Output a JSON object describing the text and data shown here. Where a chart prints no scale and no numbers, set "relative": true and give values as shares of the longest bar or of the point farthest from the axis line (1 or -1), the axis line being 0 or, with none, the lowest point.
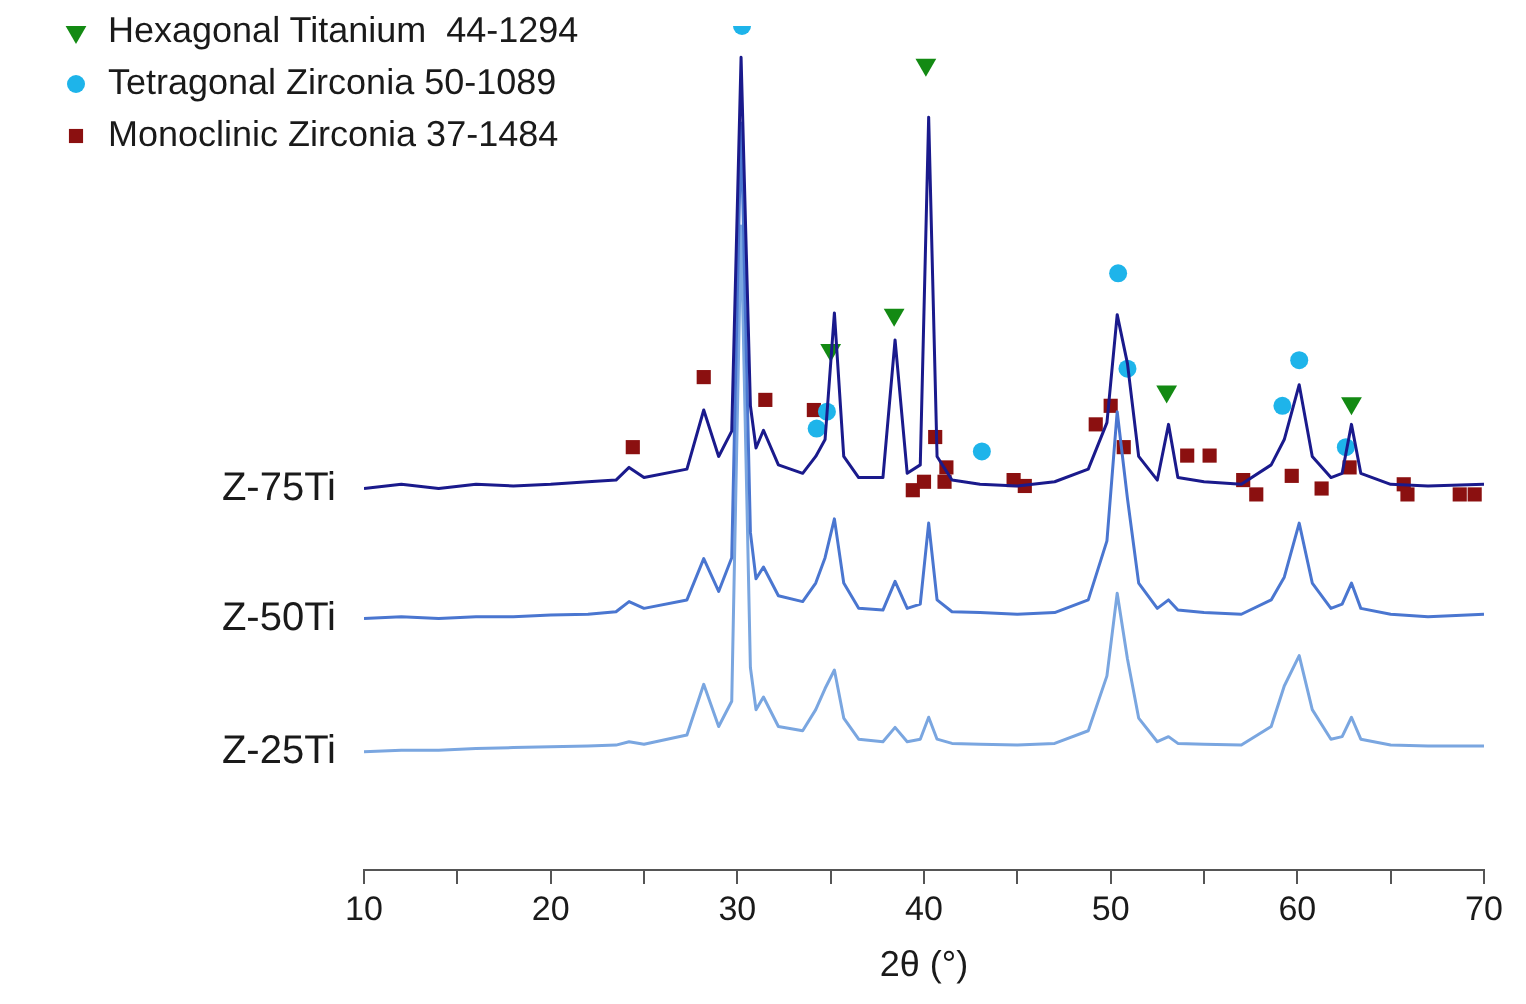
{
  "chart_data": {
    "type": "line",
    "relative": true,
    "xlabel": "2θ (°)",
    "xlim": [
      10,
      70
    ],
    "xticks": [
      10,
      {
        "value": 15,
        "label": null
      },
      20,
      {
        "value": 25,
        "label": null
      },
      30,
      {
        "value": 35,
        "label": null
      },
      40,
      {
        "value": 45,
        "label": null
      },
      50,
      {
        "value": 55,
        "label": null
      },
      60,
      {
        "value": 65,
        "label": null
      },
      70
    ],
    "grid": false,
    "legend": "top left",
    "line_style": "solid",
    "series": [
      {
        "name": "Z-75Ti",
        "color": "#1a1a8c",
        "x": [
          10,
          12,
          14,
          16,
          18,
          20,
          22,
          23.5,
          24.2,
          25,
          27.3,
          28.2,
          29.0,
          29.7,
          30.2,
          30.7,
          31.0,
          31.4,
          32.2,
          33.5,
          34.2,
          34.7,
          35.2,
          35.7,
          36.5,
          37.8,
          38.45,
          39.1,
          39.8,
          40.25,
          40.7,
          41.5,
          43,
          45,
          47,
          48.8,
          49.8,
          50.35,
          50.9,
          51.5,
          52.5,
          53.1,
          53.6,
          55,
          57,
          58.6,
          59.3,
          60.1,
          60.8,
          61.8,
          62.4,
          62.9,
          63.4,
          65,
          67,
          70
        ],
        "values": [
          0.452,
          0.457,
          0.452,
          0.457,
          0.455,
          0.457,
          0.46,
          0.462,
          0.477,
          0.465,
          0.475,
          0.545,
          0.49,
          0.52,
          0.963,
          0.55,
          0.5,
          0.521,
          0.48,
          0.47,
          0.49,
          0.51,
          0.66,
          0.49,
          0.465,
          0.465,
          0.628,
          0.47,
          0.48,
          0.892,
          0.49,
          0.462,
          0.457,
          0.455,
          0.46,
          0.475,
          0.53,
          0.658,
          0.6,
          0.49,
          0.462,
          0.528,
          0.465,
          0.46,
          0.457,
          0.48,
          0.51,
          0.575,
          0.49,
          0.465,
          0.47,
          0.528,
          0.47,
          0.457,
          0.455,
          0.457
        ]
      },
      {
        "name": "Z-50Ti",
        "color": "#4a76d0",
        "x": [
          10,
          12,
          14,
          16,
          18,
          20,
          22,
          23.5,
          24.2,
          25,
          27.3,
          28.2,
          29.0,
          29.7,
          30.2,
          30.7,
          31.0,
          31.4,
          32.2,
          33.5,
          34.2,
          34.7,
          35.2,
          35.7,
          36.5,
          37.8,
          38.45,
          39.1,
          39.8,
          40.25,
          40.7,
          41.5,
          43,
          45,
          47,
          48.8,
          49.8,
          50.35,
          50.9,
          51.5,
          52.5,
          53.1,
          53.6,
          55,
          57,
          58.6,
          59.3,
          60.1,
          60.8,
          61.8,
          62.4,
          62.9,
          63.4,
          65,
          67,
          70
        ],
        "values": [
          0.298,
          0.3,
          0.298,
          0.3,
          0.3,
          0.302,
          0.303,
          0.306,
          0.318,
          0.31,
          0.32,
          0.369,
          0.33,
          0.37,
          0.885,
          0.4,
          0.345,
          0.359,
          0.325,
          0.318,
          0.34,
          0.37,
          0.416,
          0.34,
          0.31,
          0.308,
          0.342,
          0.31,
          0.315,
          0.411,
          0.32,
          0.306,
          0.305,
          0.303,
          0.305,
          0.32,
          0.39,
          0.543,
          0.44,
          0.34,
          0.31,
          0.32,
          0.308,
          0.305,
          0.303,
          0.32,
          0.347,
          0.411,
          0.34,
          0.31,
          0.315,
          0.34,
          0.31,
          0.303,
          0.3,
          0.303
        ]
      },
      {
        "name": "Z-25Ti",
        "color": "#7aa6e0",
        "x": [
          10,
          12,
          14,
          16,
          18,
          20,
          22,
          23.5,
          24.2,
          25,
          27.3,
          28.2,
          29.0,
          29.7,
          30.2,
          30.7,
          31.0,
          31.4,
          32.2,
          33.5,
          34.2,
          34.7,
          35.2,
          35.7,
          36.5,
          37.8,
          38.45,
          39.1,
          39.8,
          40.25,
          40.7,
          41.5,
          43,
          45,
          47,
          48.8,
          49.8,
          50.35,
          50.9,
          51.5,
          52.5,
          53.1,
          53.6,
          55,
          57,
          58.6,
          59.3,
          60.1,
          60.8,
          61.8,
          62.4,
          62.9,
          63.4,
          65,
          67,
          70
        ],
        "values": [
          0.14,
          0.142,
          0.142,
          0.144,
          0.145,
          0.146,
          0.147,
          0.148,
          0.152,
          0.149,
          0.16,
          0.22,
          0.17,
          0.2,
          0.763,
          0.24,
          0.19,
          0.205,
          0.17,
          0.165,
          0.19,
          0.215,
          0.237,
          0.18,
          0.155,
          0.152,
          0.169,
          0.152,
          0.155,
          0.181,
          0.155,
          0.15,
          0.149,
          0.148,
          0.15,
          0.165,
          0.23,
          0.328,
          0.25,
          0.18,
          0.152,
          0.158,
          0.15,
          0.149,
          0.148,
          0.17,
          0.218,
          0.254,
          0.19,
          0.155,
          0.158,
          0.181,
          0.155,
          0.148,
          0.147,
          0.147
        ]
      },
      {
        "name": "Hexagonal Titanium  44-1294",
        "type": "scatter",
        "marker": "triangle",
        "color": "#138a13",
        "x": [
          35.0,
          38.4,
          40.1,
          53.0,
          62.9
        ],
        "values": [
          0.616,
          0.658,
          0.954,
          0.567,
          0.553
        ]
      },
      {
        "name": "Tetragonal Zirconia 50-1089",
        "type": "scatter",
        "marker": "circle",
        "color": "#1eb4ea",
        "x": [
          30.25,
          34.25,
          34.8,
          43.1,
          50.4,
          50.9,
          59.2,
          60.1,
          62.6
        ],
        "values": [
          1,
          0.523,
          0.543,
          0.496,
          0.707,
          0.594,
          0.55,
          0.604,
          0.501
        ]
      },
      {
        "name": "Monoclinic Zirconia 37-1484",
        "type": "scatter",
        "marker": "square",
        "color": "#8b1010",
        "x": [
          24.4,
          28.2,
          31.5,
          34.1,
          40.6,
          39.4,
          40.0,
          41.2,
          41.1,
          44.8,
          45.4,
          49.2,
          50.0,
          50.7,
          54.1,
          55.3,
          57.1,
          57.8,
          59.7,
          61.3,
          62.8,
          65.7,
          65.9,
          68.7,
          69.5
        ],
        "values": [
          0.501,
          0.584,
          0.557,
          0.545,
          0.513,
          0.45,
          0.46,
          0.477,
          0.46,
          0.462,
          0.455,
          0.528,
          0.55,
          0.501,
          0.491,
          0.491,
          0.462,
          0.445,
          0.467,
          0.452,
          0.477,
          0.457,
          0.445,
          0.445,
          0.445
        ]
      }
    ]
  }
}
